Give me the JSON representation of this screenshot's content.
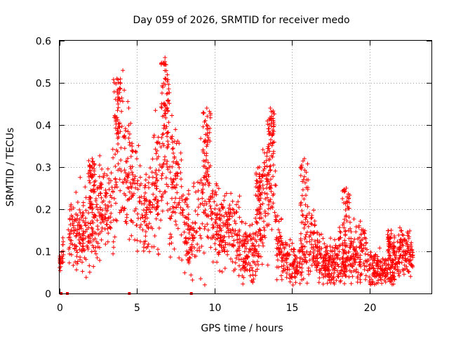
{
  "chart_data": {
    "type": "scatter",
    "title": "Day 059 of 2026, SRMTID for receiver medo",
    "xlabel": "GPS time / hours",
    "ylabel": "SRMTID / TECUs",
    "xlim": [
      0,
      24
    ],
    "ylim": [
      0,
      0.6
    ],
    "xticks": [
      0,
      5,
      10,
      15,
      20
    ],
    "yticks": [
      0,
      0.1,
      0.2,
      0.3,
      0.4,
      0.5,
      0.6
    ],
    "xtick_labels": [
      "0",
      "5",
      "10",
      "15",
      "20"
    ],
    "ytick_labels": [
      "0",
      "0.1",
      "0.2",
      "0.3",
      "0.4",
      "0.5",
      "0.6"
    ],
    "grid": true,
    "marker": "+",
    "color": "#ff0000",
    "zero_points_x": [
      0.1,
      0.5,
      4.5,
      8.5
    ],
    "envelope": {
      "hours": [
        0.0,
        0.5,
        1.0,
        1.5,
        2.0,
        2.5,
        3.0,
        3.5,
        3.8,
        4.2,
        4.6,
        5.0,
        5.5,
        6.0,
        6.5,
        6.8,
        7.2,
        7.6,
        8.0,
        8.5,
        9.0,
        9.5,
        10.0,
        10.5,
        11.0,
        11.5,
        12.0,
        12.5,
        13.0,
        13.5,
        13.8,
        14.0,
        14.5,
        15.0,
        15.5,
        16.0,
        16.5,
        17.0,
        17.5,
        18.0,
        18.5,
        19.0,
        19.5,
        20.0,
        20.5,
        21.0,
        21.5,
        22.0,
        22.5,
        22.8
      ],
      "center": [
        0.07,
        0.13,
        0.15,
        0.14,
        0.17,
        0.18,
        0.19,
        0.22,
        0.34,
        0.32,
        0.27,
        0.24,
        0.19,
        0.21,
        0.27,
        0.37,
        0.28,
        0.24,
        0.17,
        0.13,
        0.19,
        0.26,
        0.18,
        0.14,
        0.17,
        0.13,
        0.1,
        0.09,
        0.17,
        0.26,
        0.34,
        0.12,
        0.08,
        0.07,
        0.07,
        0.14,
        0.1,
        0.07,
        0.07,
        0.09,
        0.07,
        0.1,
        0.1,
        0.07,
        0.06,
        0.05,
        0.06,
        0.1,
        0.1,
        0.08
      ],
      "spread": [
        0.01,
        0.03,
        0.05,
        0.05,
        0.06,
        0.06,
        0.06,
        0.07,
        0.1,
        0.1,
        0.08,
        0.07,
        0.06,
        0.07,
        0.09,
        0.12,
        0.1,
        0.08,
        0.06,
        0.05,
        0.07,
        0.08,
        0.06,
        0.05,
        0.05,
        0.05,
        0.04,
        0.04,
        0.06,
        0.08,
        0.1,
        0.04,
        0.03,
        0.03,
        0.03,
        0.06,
        0.04,
        0.03,
        0.03,
        0.04,
        0.03,
        0.04,
        0.04,
        0.03,
        0.03,
        0.02,
        0.03,
        0.03,
        0.03,
        0.02
      ]
    },
    "peaks": [
      {
        "x": 3.7,
        "y": 0.51
      },
      {
        "x": 6.8,
        "y": 0.56
      },
      {
        "x": 9.5,
        "y": 0.44
      },
      {
        "x": 13.6,
        "y": 0.44
      },
      {
        "x": 15.8,
        "y": 0.32
      },
      {
        "x": 2.1,
        "y": 0.32
      },
      {
        "x": 12.9,
        "y": 0.3
      },
      {
        "x": 18.5,
        "y": 0.25
      },
      {
        "x": 21.4,
        "y": 0.15
      }
    ],
    "points_count": 2200
  }
}
